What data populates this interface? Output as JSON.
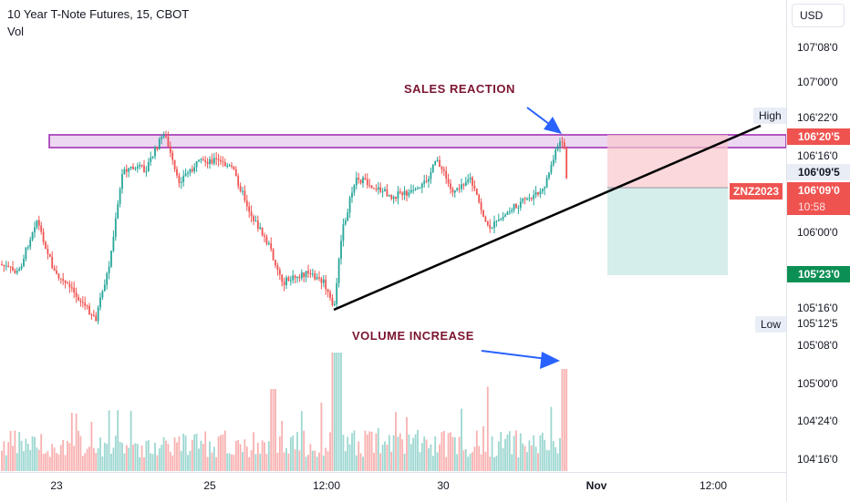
{
  "legend": {
    "title": "10 Year T-Note Futures, 15, CBOT",
    "volume": "Vol"
  },
  "price_axis": {
    "currency": "USD",
    "ticks": [
      "107'08'0",
      "107'00'0",
      "106'22'0",
      "106'16'0",
      "106'00'0",
      "105'16'0",
      "105'08'0",
      "105'00'0",
      "104'24'0",
      "104'16'0"
    ],
    "tags": {
      "high_line": "106'20'5",
      "entry": "106'09'5",
      "last": "106'09'0",
      "countdown": "10:58",
      "stop_target": "105'23'0",
      "low": "105'12'5"
    },
    "symbol": "ZNZ2023",
    "high_label": "High",
    "low_label": "Low"
  },
  "time_axis": {
    "ticks": [
      "23",
      "25",
      "12:00",
      "30",
      "Nov",
      "12:00"
    ]
  },
  "annotations": {
    "sales_reaction": "SALES REACTION",
    "volume_increase": "VOLUME INCREASE"
  },
  "colors": {
    "up": "#26a69a",
    "down": "#ef5350",
    "zone": "#9c27b0",
    "arrow": "#2962ff",
    "annot": "#7b1531"
  }
}
